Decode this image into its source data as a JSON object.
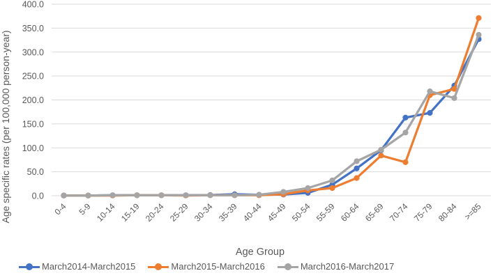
{
  "chart_data": {
    "type": "line",
    "title": "",
    "xlabel": "Age Group",
    "ylabel": "Age specific rates (per 100,000 person-year)",
    "ylim": [
      0,
      400
    ],
    "ytick_step": 50,
    "ytick_decimals": 1,
    "grid": true,
    "legend_position": "bottom",
    "categories": [
      "0-4",
      "5-9",
      "10-14",
      "15-19",
      "20-24",
      "25-29",
      "30-34",
      "35-39",
      "40-44",
      "45-49",
      "50-54",
      "55-59",
      "60-64",
      "65-69",
      "70-74",
      "75-79",
      "80-84",
      ">=85"
    ],
    "series": [
      {
        "name": "March2014-March2015",
        "color": "#4472C4",
        "values": [
          0.5,
          0.5,
          1.0,
          1.0,
          1.0,
          1.0,
          1.5,
          3.0,
          2.0,
          2.5,
          6.0,
          23.0,
          57.0,
          95.0,
          163.0,
          173.0,
          230.0,
          327.0
        ]
      },
      {
        "name": "March2015-March2016",
        "color": "#ED7D31",
        "values": [
          0.5,
          0.5,
          0.5,
          1.0,
          1.0,
          0.5,
          1.0,
          1.0,
          1.0,
          3.0,
          11.0,
          16.0,
          37.0,
          84.0,
          70.0,
          210.0,
          223.0,
          371.0
        ]
      },
      {
        "name": "March2016-March2017",
        "color": "#A5A5A5",
        "values": [
          0.5,
          0.5,
          1.0,
          1.0,
          1.0,
          1.0,
          1.0,
          1.0,
          2.0,
          8.0,
          16.0,
          32.0,
          72.0,
          96.0,
          132.0,
          218.0,
          204.0,
          336.0
        ]
      }
    ],
    "style": {
      "grid_color": "#D9D9D9",
      "text_color": "#595959",
      "background": "#FFFFFF"
    }
  }
}
